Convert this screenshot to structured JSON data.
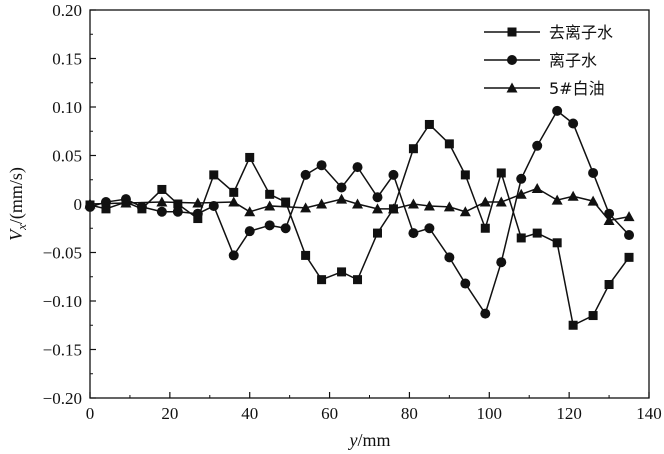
{
  "chart_data": {
    "type": "line",
    "xlabel_var": "y",
    "xlabel_unit": "/mm",
    "ylabel_var": "V",
    "ylabel_sub": "x",
    "ylabel_unit": "/(mm/s)",
    "xlim": [
      0,
      140
    ],
    "ylim": [
      -0.2,
      0.2
    ],
    "xticks": [
      0,
      20,
      40,
      60,
      80,
      100,
      120,
      140
    ],
    "xtick_labels": [
      "0",
      "20",
      "40",
      "60",
      "80",
      "100",
      "120",
      "140"
    ],
    "yticks": [
      0.2,
      0.15,
      0.1,
      0.05,
      0,
      -0.05,
      -0.1,
      -0.15,
      -0.2
    ],
    "ytick_labels": [
      "0.20",
      "0.15",
      "0.10",
      "0.05",
      "0",
      "−0.05",
      "−0.10",
      "−0.15",
      "−0.20"
    ],
    "grid": false,
    "legend_position": "top-right",
    "series": [
      {
        "name": "去离子水",
        "marker": "square",
        "x": [
          0,
          4,
          9,
          13,
          18,
          22,
          27,
          31,
          36,
          40,
          45,
          49,
          54,
          58,
          63,
          67,
          72,
          76,
          81,
          85,
          90,
          94,
          99,
          103,
          108,
          112,
          117,
          121,
          126,
          130,
          135
        ],
        "y": [
          -0.001,
          -0.005,
          0.002,
          -0.005,
          0.015,
          0.0,
          -0.015,
          0.03,
          0.012,
          0.048,
          0.01,
          0.002,
          -0.053,
          -0.078,
          -0.07,
          -0.078,
          -0.03,
          -0.005,
          0.057,
          0.082,
          0.062,
          0.03,
          -0.025,
          0.032,
          -0.035,
          -0.03,
          -0.04,
          -0.125,
          -0.115,
          -0.083,
          -0.055
        ]
      },
      {
        "name": "离子水",
        "marker": "circle",
        "x": [
          0,
          4,
          9,
          13,
          18,
          22,
          27,
          31,
          36,
          40,
          45,
          49,
          54,
          58,
          63,
          67,
          72,
          76,
          81,
          85,
          90,
          94,
          99,
          103,
          108,
          112,
          117,
          121,
          126,
          130,
          135
        ],
        "y": [
          -0.003,
          0.002,
          0.005,
          -0.003,
          -0.008,
          -0.008,
          -0.01,
          -0.002,
          -0.053,
          -0.028,
          -0.022,
          -0.025,
          0.03,
          0.04,
          0.017,
          0.038,
          0.007,
          0.03,
          -0.03,
          -0.025,
          -0.055,
          -0.082,
          -0.113,
          -0.06,
          0.026,
          0.06,
          0.096,
          0.083,
          0.032,
          -0.01,
          -0.032
        ]
      },
      {
        "name": "5#白油",
        "marker": "triangle",
        "x": [
          0,
          9,
          18,
          27,
          36,
          40,
          45,
          54,
          58,
          63,
          67,
          72,
          76,
          81,
          85,
          90,
          94,
          99,
          103,
          108,
          112,
          117,
          121,
          126,
          130,
          135
        ],
        "y": [
          0.0,
          0.001,
          0.002,
          0.001,
          0.002,
          -0.008,
          -0.002,
          -0.004,
          0.0,
          0.005,
          0.0,
          -0.005,
          -0.005,
          0.0,
          -0.002,
          -0.003,
          -0.008,
          0.002,
          0.002,
          0.01,
          0.016,
          0.004,
          0.008,
          0.003,
          -0.017,
          -0.013
        ]
      }
    ]
  }
}
